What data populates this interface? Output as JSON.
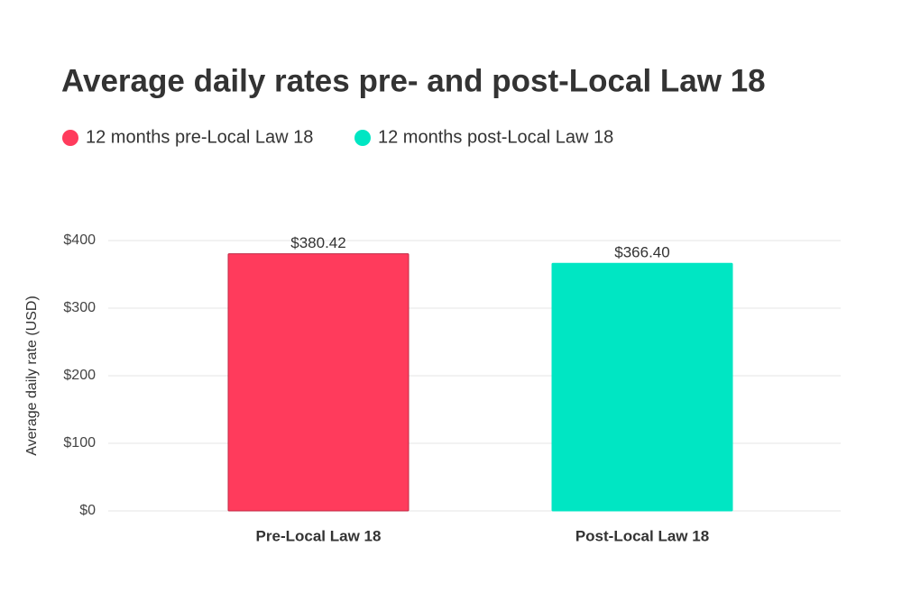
{
  "chart_data": {
    "type": "bar",
    "title": "Average daily rates pre- and post-Local Law 18",
    "y_label": "Average daily rate (USD)",
    "categories": [
      "Pre-Local Law 18",
      "Post-Local Law 18"
    ],
    "series": [
      {
        "name": "12 months pre-Local Law 18",
        "color": "#ff3b5c",
        "values": [
          380.42,
          null
        ],
        "value_labels": [
          "$380.42",
          null
        ]
      },
      {
        "name": "12 months post-Local Law 18",
        "color": "#00e6c3",
        "values": [
          null,
          366.4
        ],
        "value_labels": [
          null,
          "$366.40"
        ]
      }
    ],
    "ylim": [
      0,
      400
    ],
    "yticks": [
      {
        "value": 0,
        "label": "$0"
      },
      {
        "value": 100,
        "label": "$100"
      },
      {
        "value": 200,
        "label": "$200"
      },
      {
        "value": 300,
        "label": "$300"
      },
      {
        "value": 400,
        "label": "$400"
      }
    ],
    "grid": true,
    "legend": "top"
  }
}
